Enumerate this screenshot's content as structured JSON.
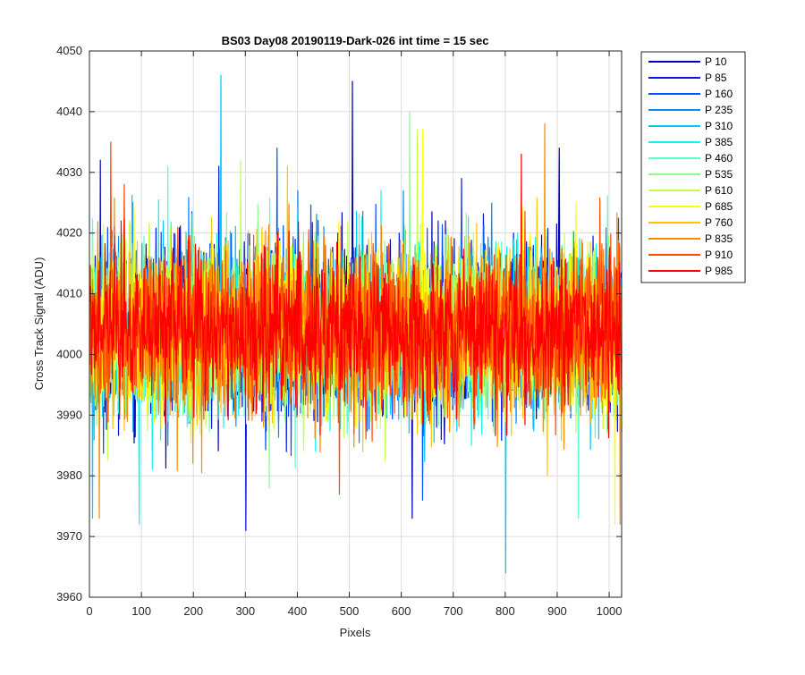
{
  "chart_data": {
    "type": "line",
    "title": "BS03 Day08 20190119-Dark-026 int time = 15 sec",
    "xlabel": "Pixels",
    "ylabel": "Cross Track Signal (ADU)",
    "xlim": [
      0,
      1024
    ],
    "ylim": [
      3960,
      4050
    ],
    "xticks": [
      0,
      100,
      200,
      300,
      400,
      500,
      600,
      700,
      800,
      900,
      1000
    ],
    "yticks": [
      3960,
      3970,
      3980,
      3990,
      4000,
      4010,
      4020,
      4030,
      4040,
      4050
    ],
    "grid": true,
    "legend_position": "outside-top-right",
    "n_points": 1024,
    "series": [
      {
        "name": "P 10",
        "color": "#0000b3",
        "mean": 4004,
        "spread": 6.5,
        "spikes": [
          [
            20,
            4032
          ],
          [
            505,
            4045
          ],
          [
            620,
            3973
          ],
          [
            903,
            4034
          ]
        ]
      },
      {
        "name": "P 85",
        "color": "#0015e6",
        "mean": 4004,
        "spread": 6.5,
        "spikes": [
          [
            248,
            4031
          ],
          [
            300,
            3971
          ],
          [
            715,
            4029
          ]
        ]
      },
      {
        "name": "P 160",
        "color": "#0050ff",
        "mean": 4004,
        "spread": 6.5,
        "spikes": [
          [
            360,
            4034
          ],
          [
            640,
            3976
          ]
        ]
      },
      {
        "name": "P 235",
        "color": "#008cff",
        "mean": 4004,
        "spread": 6.5,
        "spikes": [
          [
            150,
            3985
          ],
          [
            400,
            4027
          ]
        ]
      },
      {
        "name": "P 310",
        "color": "#00c8ff",
        "mean": 4004,
        "spread": 6.5,
        "spikes": [
          [
            5,
            3973
          ],
          [
            252,
            4046
          ],
          [
            800,
            3964
          ]
        ]
      },
      {
        "name": "P 385",
        "color": "#10f5f0",
        "mean": 4004,
        "spread": 6.5,
        "spikes": [
          [
            95,
            3972
          ],
          [
            560,
            4027
          ]
        ]
      },
      {
        "name": "P 460",
        "color": "#55ffd0",
        "mean": 4004,
        "spread": 6.5,
        "spikes": [
          [
            940,
            3973
          ],
          [
            150,
            4031
          ]
        ]
      },
      {
        "name": "P 535",
        "color": "#88ff8c",
        "mean": 4004,
        "spread": 6.5,
        "spikes": [
          [
            615,
            4040
          ],
          [
            345,
            3978
          ]
        ]
      },
      {
        "name": "P 610",
        "color": "#c4ff4c",
        "mean": 4004,
        "spread": 6.5,
        "spikes": [
          [
            630,
            4037
          ],
          [
            290,
            4032
          ]
        ]
      },
      {
        "name": "P 685",
        "color": "#ffff00",
        "mean": 4004,
        "spread": 6.5,
        "spikes": [
          [
            640,
            4037
          ],
          [
            1010,
            3972
          ]
        ]
      },
      {
        "name": "P 760",
        "color": "#ffc400",
        "mean": 4004,
        "spread": 6.5,
        "spikes": [
          [
            380,
            4031
          ],
          [
            880,
            3980
          ]
        ]
      },
      {
        "name": "P 835",
        "color": "#ff8a00",
        "mean": 4004,
        "spread": 6.5,
        "spikes": [
          [
            875,
            4038
          ],
          [
            18,
            3973
          ],
          [
            1020,
            3972
          ]
        ]
      },
      {
        "name": "P 910",
        "color": "#ff4c00",
        "mean": 4004,
        "spread": 6.5,
        "spikes": [
          [
            40,
            4035
          ],
          [
            480,
            3977
          ],
          [
            66,
            4028
          ]
        ]
      },
      {
        "name": "P 985",
        "color": "#ff0000",
        "mean": 4004,
        "spread": 6.0,
        "spikes": [
          [
            830,
            4033
          ],
          [
            60,
            4022
          ]
        ]
      }
    ]
  }
}
